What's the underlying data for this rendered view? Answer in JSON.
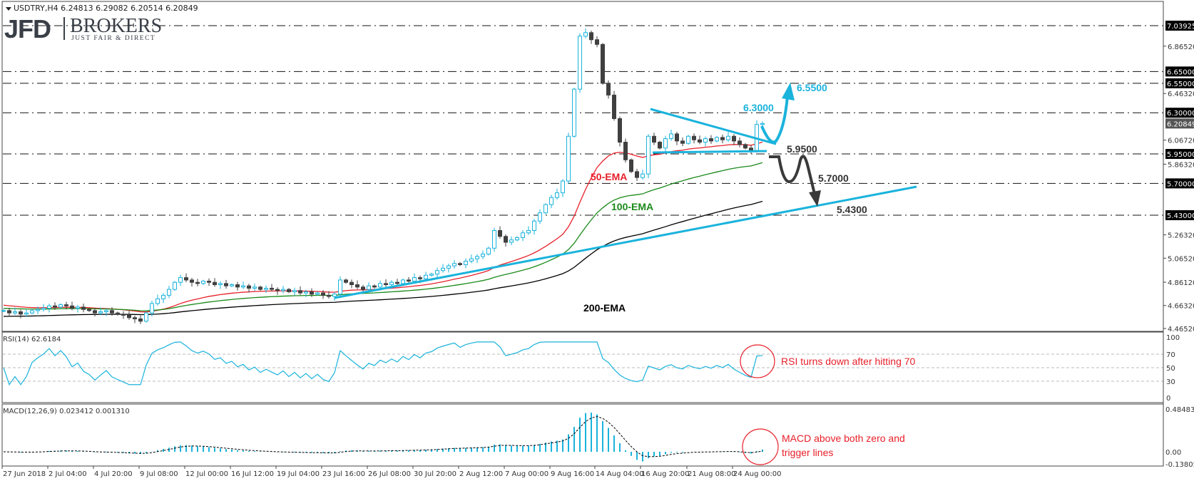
{
  "header": {
    "symbol_line": "USDTRY,H4  6.24813 6.29082 6.20514 6.20849",
    "dropdown_icon": "triangle-down-icon"
  },
  "logo": {
    "main": "JFD",
    "brand": "BROKERS",
    "tagline": "JUST FAIR & DIRECT"
  },
  "colors": {
    "bull": "#1ab3dc",
    "bear": "#404040",
    "ema50": "#e8202a",
    "ema100": "#1a8a1a",
    "ema200": "#000000",
    "trend": "#1ab3dc",
    "annotation": "#e8202a",
    "macd_hist": "#1ab3dc"
  },
  "price_axis": {
    "ticks": [
      "6.86520",
      "6.46320",
      "6.06720",
      "5.86320",
      "5.26320",
      "5.06520",
      "4.86120",
      "4.66320",
      "4.46520"
    ],
    "levels": [
      "7.03925",
      "6.65000",
      "6.55000",
      "6.30000",
      "5.95000",
      "5.70000",
      "5.43000"
    ],
    "current": "6.20849"
  },
  "rsi": {
    "label": "RSI(14) 62.6184",
    "ticks": [
      "100",
      "70",
      "50",
      "30",
      "0"
    ],
    "levels": [
      70,
      50,
      30
    ]
  },
  "macd": {
    "label": "MACD(12,26,9) 0.023412 0.001310",
    "ticks": [
      "0.484832",
      "0.00",
      "-0.138055"
    ]
  },
  "time_axis": [
    "27 Jun 2018",
    "2 Jul 04:00",
    "4 Jul 20:00",
    "9 Jul 08:00",
    "12 Jul 00:00",
    "16 Jul 12:00",
    "19 Jul 04:00",
    "23 Jul 16:00",
    "26 Jul 08:00",
    "30 Jul 20:00",
    "2 Aug 12:00",
    "7 Aug 00:00",
    "9 Aug 16:00",
    "14 Aug 04:00",
    "16 Aug 20:00",
    "21 Aug 08:00",
    "24 Aug 00:00"
  ],
  "annotations": {
    "ema50": "50-EMA",
    "ema100": "100-EMA",
    "ema200": "200-EMA",
    "up_target": "6.5500",
    "resistance": "6.3000",
    "support1": "5.9500",
    "support2": "5.7000",
    "support3": "5.4300",
    "rsi_note": "RSI turns down after hitting 70",
    "macd_note_1": "MACD above both zero and",
    "macd_note_2": "trigger lines"
  },
  "chart_data": {
    "type": "candlestick",
    "symbol": "USDTRY",
    "timeframe": "H4",
    "ylim": [
      4.4652,
      7.03925
    ],
    "horizontal_levels": [
      7.03925,
      6.65,
      6.55,
      6.3,
      5.95,
      5.7,
      5.43
    ],
    "indicators": [
      "EMA 50",
      "EMA 100",
      "EMA 200",
      "RSI 14",
      "MACD 12,26,9"
    ],
    "closes": [
      4.62,
      4.6,
      4.61,
      4.59,
      4.6,
      4.62,
      4.63,
      4.64,
      4.66,
      4.65,
      4.67,
      4.66,
      4.64,
      4.65,
      4.63,
      4.62,
      4.6,
      4.61,
      4.62,
      4.6,
      4.59,
      4.58,
      4.56,
      4.55,
      4.53,
      4.6,
      4.68,
      4.72,
      4.75,
      4.8,
      4.86,
      4.9,
      4.88,
      4.86,
      4.85,
      4.87,
      4.86,
      4.84,
      4.85,
      4.83,
      4.84,
      4.82,
      4.83,
      4.81,
      4.82,
      4.8,
      4.81,
      4.8,
      4.79,
      4.8,
      4.78,
      4.79,
      4.77,
      4.78,
      4.76,
      4.77,
      4.75,
      4.74,
      4.76,
      4.88,
      4.86,
      4.84,
      4.82,
      4.8,
      4.83,
      4.82,
      4.85,
      4.84,
      4.86,
      4.85,
      4.88,
      4.87,
      4.9,
      4.89,
      4.92,
      4.93,
      4.96,
      4.98,
      5.0,
      5.02,
      5.01,
      5.04,
      5.06,
      5.08,
      5.1,
      5.15,
      5.3,
      5.25,
      5.2,
      5.22,
      5.24,
      5.28,
      5.3,
      5.38,
      5.45,
      5.52,
      5.58,
      5.62,
      5.72,
      6.1,
      6.5,
      6.95,
      6.98,
      6.92,
      6.88,
      6.55,
      6.45,
      6.25,
      6.05,
      5.9,
      5.8,
      5.75,
      5.78,
      6.1,
      6.05,
      6.0,
      6.08,
      6.12,
      6.06,
      6.04,
      6.1,
      6.07,
      6.05,
      6.08,
      6.06,
      6.09,
      6.07,
      6.1,
      6.06,
      6.03,
      6.0,
      5.98,
      6.2,
      6.20849
    ]
  }
}
